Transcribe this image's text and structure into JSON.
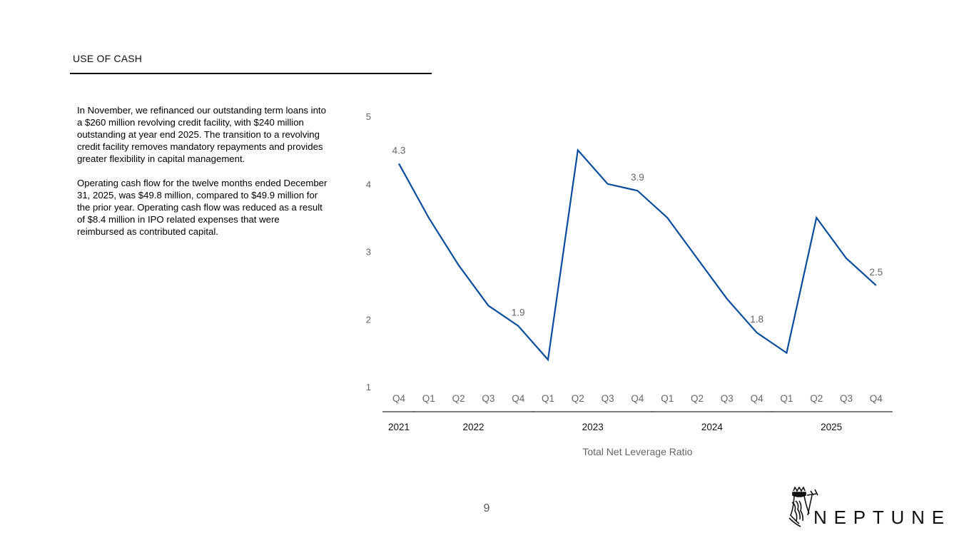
{
  "header": {
    "title": "USE OF CASH"
  },
  "body": {
    "paragraphs": [
      "In November, we refinanced our outstanding term loans into a $260 million revolving credit facility, with $240 million outstanding at year end 2025. The transition to a revolving credit facility removes mandatory repayments and provides greater flexibility in capital management.",
      "Operating cash flow for the twelve months ended December 31, 2025, was $49.8 million, compared to $49.9 million for the prior year. Operating cash flow was reduced as a result of $8.4 million in IPO related expenses that were reimbursed as contributed capital."
    ]
  },
  "chart_data": {
    "type": "line",
    "xlabel": "Total Net Leverage Ratio",
    "ylabel": "",
    "ylim": [
      1,
      5
    ],
    "yticks": [
      1,
      2,
      3,
      4,
      5
    ],
    "grid": false,
    "color": "#0b4c9c",
    "categories": [
      "Q4",
      "Q1",
      "Q2",
      "Q3",
      "Q4",
      "Q1",
      "Q2",
      "Q3",
      "Q4",
      "Q1",
      "Q2",
      "Q3",
      "Q4",
      "Q1",
      "Q2",
      "Q3",
      "Q4"
    ],
    "year_groups": [
      {
        "label": "2021",
        "start": 0,
        "end": 0
      },
      {
        "label": "2022",
        "start": 1,
        "end": 4
      },
      {
        "label": "2023",
        "start": 5,
        "end": 8
      },
      {
        "label": "2024",
        "start": 9,
        "end": 12
      },
      {
        "label": "2025",
        "start": 13,
        "end": 16
      }
    ],
    "series": [
      {
        "values": [
          4.3,
          3.5,
          2.8,
          2.2,
          1.9,
          1.4,
          4.5,
          4.0,
          3.9,
          3.5,
          2.9,
          2.3,
          1.8,
          1.5,
          3.5,
          2.9,
          2.5
        ]
      }
    ],
    "data_labels": [
      {
        "index": 0,
        "text": "4.3"
      },
      {
        "index": 4,
        "text": "1.9"
      },
      {
        "index": 8,
        "text": "3.9"
      },
      {
        "index": 12,
        "text": "1.8"
      },
      {
        "index": 16,
        "text": "2.5"
      }
    ]
  },
  "footer": {
    "page_number": "9",
    "logo_text": "NEPTUNE",
    "logo_icon": "neptune-bust-icon"
  }
}
